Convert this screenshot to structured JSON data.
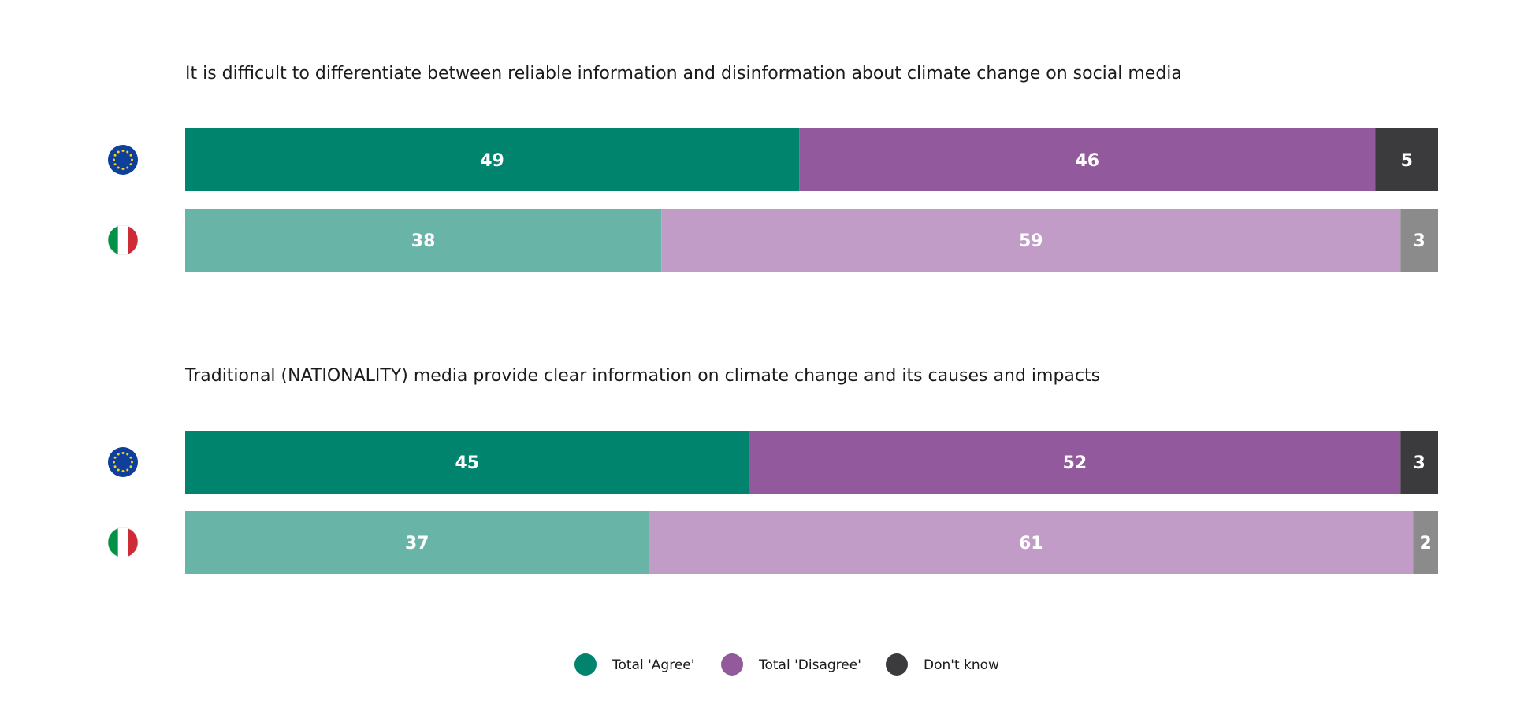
{
  "chart_data": {
    "type": "bar",
    "orientation": "horizontal",
    "stacked": true,
    "xlim": [
      0,
      100
    ],
    "categories": [
      "Total 'Agree'",
      "Total 'Disagree'",
      "Don't know"
    ],
    "colors": {
      "eu": [
        "#00846e",
        "#925a9c",
        "#3b3a3c"
      ],
      "country": [
        "#68b5a8",
        "#c09cc6",
        "#8c8b8c"
      ]
    },
    "groups": [
      {
        "title": "It is difficult to differentiate between reliable information and disinformation about climate change on social media",
        "rows": [
          {
            "flag": "eu-flag-icon",
            "values": [
              49,
              46,
              5
            ]
          },
          {
            "flag": "italy-flag-icon",
            "values": [
              38,
              59,
              3
            ]
          }
        ]
      },
      {
        "title": "Traditional (NATIONALITY) media provide clear information on climate change and its causes and impacts",
        "rows": [
          {
            "flag": "eu-flag-icon",
            "values": [
              45,
              52,
              3
            ]
          },
          {
            "flag": "italy-flag-icon",
            "values": [
              37,
              61,
              2
            ]
          }
        ]
      }
    ],
    "legend": {
      "position": "bottom-center",
      "items": [
        {
          "label": "Total 'Agree'",
          "color": "#00846e"
        },
        {
          "label": "Total 'Disagree'",
          "color": "#925a9c"
        },
        {
          "label": "Don't know",
          "color": "#3b3a3c"
        }
      ]
    }
  }
}
